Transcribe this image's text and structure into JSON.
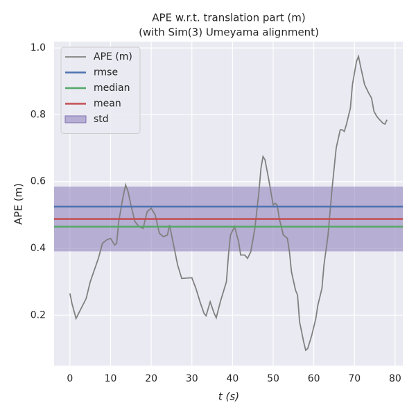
{
  "chart_data": {
    "type": "line",
    "title": "APE w.r.t. translation part (m)",
    "subtitle": "(with Sim(3) Umeyama alignment)",
    "xlabel": "t (s)",
    "ylabel": "APE (m)",
    "xlim": [
      -3.9,
      81.9
    ],
    "xticks": [
      0,
      10,
      20,
      30,
      40,
      50,
      60,
      70,
      80
    ],
    "ylim": [
      0.049,
      1.019
    ],
    "yticks": [
      0.2,
      0.4,
      0.6,
      0.8,
      {
        "value": 1,
        "label": "1.0"
      }
    ],
    "grid": true,
    "legend": "upper left",
    "series": [
      {
        "name": "APE (m)",
        "color": "#808080",
        "x": [
          0,
          0.5,
          1.5,
          4,
          5,
          6,
          7,
          8,
          9,
          10,
          11,
          11.5,
          12,
          13,
          13.7,
          14.3,
          15,
          16,
          17,
          18,
          19,
          20,
          21,
          22,
          23,
          24,
          24.5,
          25.5,
          26.5,
          27.5,
          30,
          31,
          32,
          33,
          33.5,
          34.5,
          35.5,
          36,
          37,
          38.5,
          39,
          39.5,
          40.5,
          41.5,
          42,
          43,
          43.7,
          44.5,
          45.5,
          46.5,
          47,
          47.5,
          48,
          49,
          50,
          50.5,
          51,
          51.5,
          52.5,
          53.5,
          54,
          54.5,
          55.5,
          56,
          56.5,
          57.5,
          58,
          58.5,
          59.5,
          60.5,
          61,
          62,
          62.5,
          63.5,
          64.5,
          65.5,
          66.5,
          67,
          67.5,
          68,
          69,
          69.5,
          70.5,
          71,
          71.5,
          72.5,
          73.5,
          74.2,
          74.8,
          75.5,
          76.2,
          77,
          77.5,
          78
        ],
        "values": [
          0.265,
          0.235,
          0.19,
          0.25,
          0.3,
          0.335,
          0.37,
          0.415,
          0.425,
          0.43,
          0.41,
          0.415,
          0.48,
          0.55,
          0.59,
          0.57,
          0.53,
          0.48,
          0.465,
          0.46,
          0.51,
          0.52,
          0.5,
          0.445,
          0.435,
          0.44,
          0.47,
          0.41,
          0.35,
          0.31,
          0.312,
          0.28,
          0.24,
          0.205,
          0.198,
          0.24,
          0.205,
          0.192,
          0.24,
          0.3,
          0.38,
          0.44,
          0.465,
          0.42,
          0.38,
          0.38,
          0.37,
          0.39,
          0.46,
          0.57,
          0.64,
          0.675,
          0.665,
          0.6,
          0.53,
          0.535,
          0.53,
          0.49,
          0.44,
          0.43,
          0.39,
          0.33,
          0.275,
          0.26,
          0.18,
          0.12,
          0.095,
          0.1,
          0.14,
          0.19,
          0.23,
          0.28,
          0.35,
          0.44,
          0.58,
          0.7,
          0.755,
          0.755,
          0.75,
          0.77,
          0.82,
          0.89,
          0.96,
          0.975,
          0.945,
          0.89,
          0.865,
          0.85,
          0.81,
          0.795,
          0.785,
          0.775,
          0.772,
          0.785
        ]
      }
    ],
    "hlines": [
      {
        "name": "rmse",
        "color": "#4c72b0",
        "value": 0.525
      },
      {
        "name": "median",
        "color": "#55a868",
        "value": 0.465
      },
      {
        "name": "mean",
        "color": "#c44e52",
        "value": 0.488
      }
    ],
    "std": {
      "name": "std",
      "color": "#8172b3",
      "value": 0.097
    }
  }
}
